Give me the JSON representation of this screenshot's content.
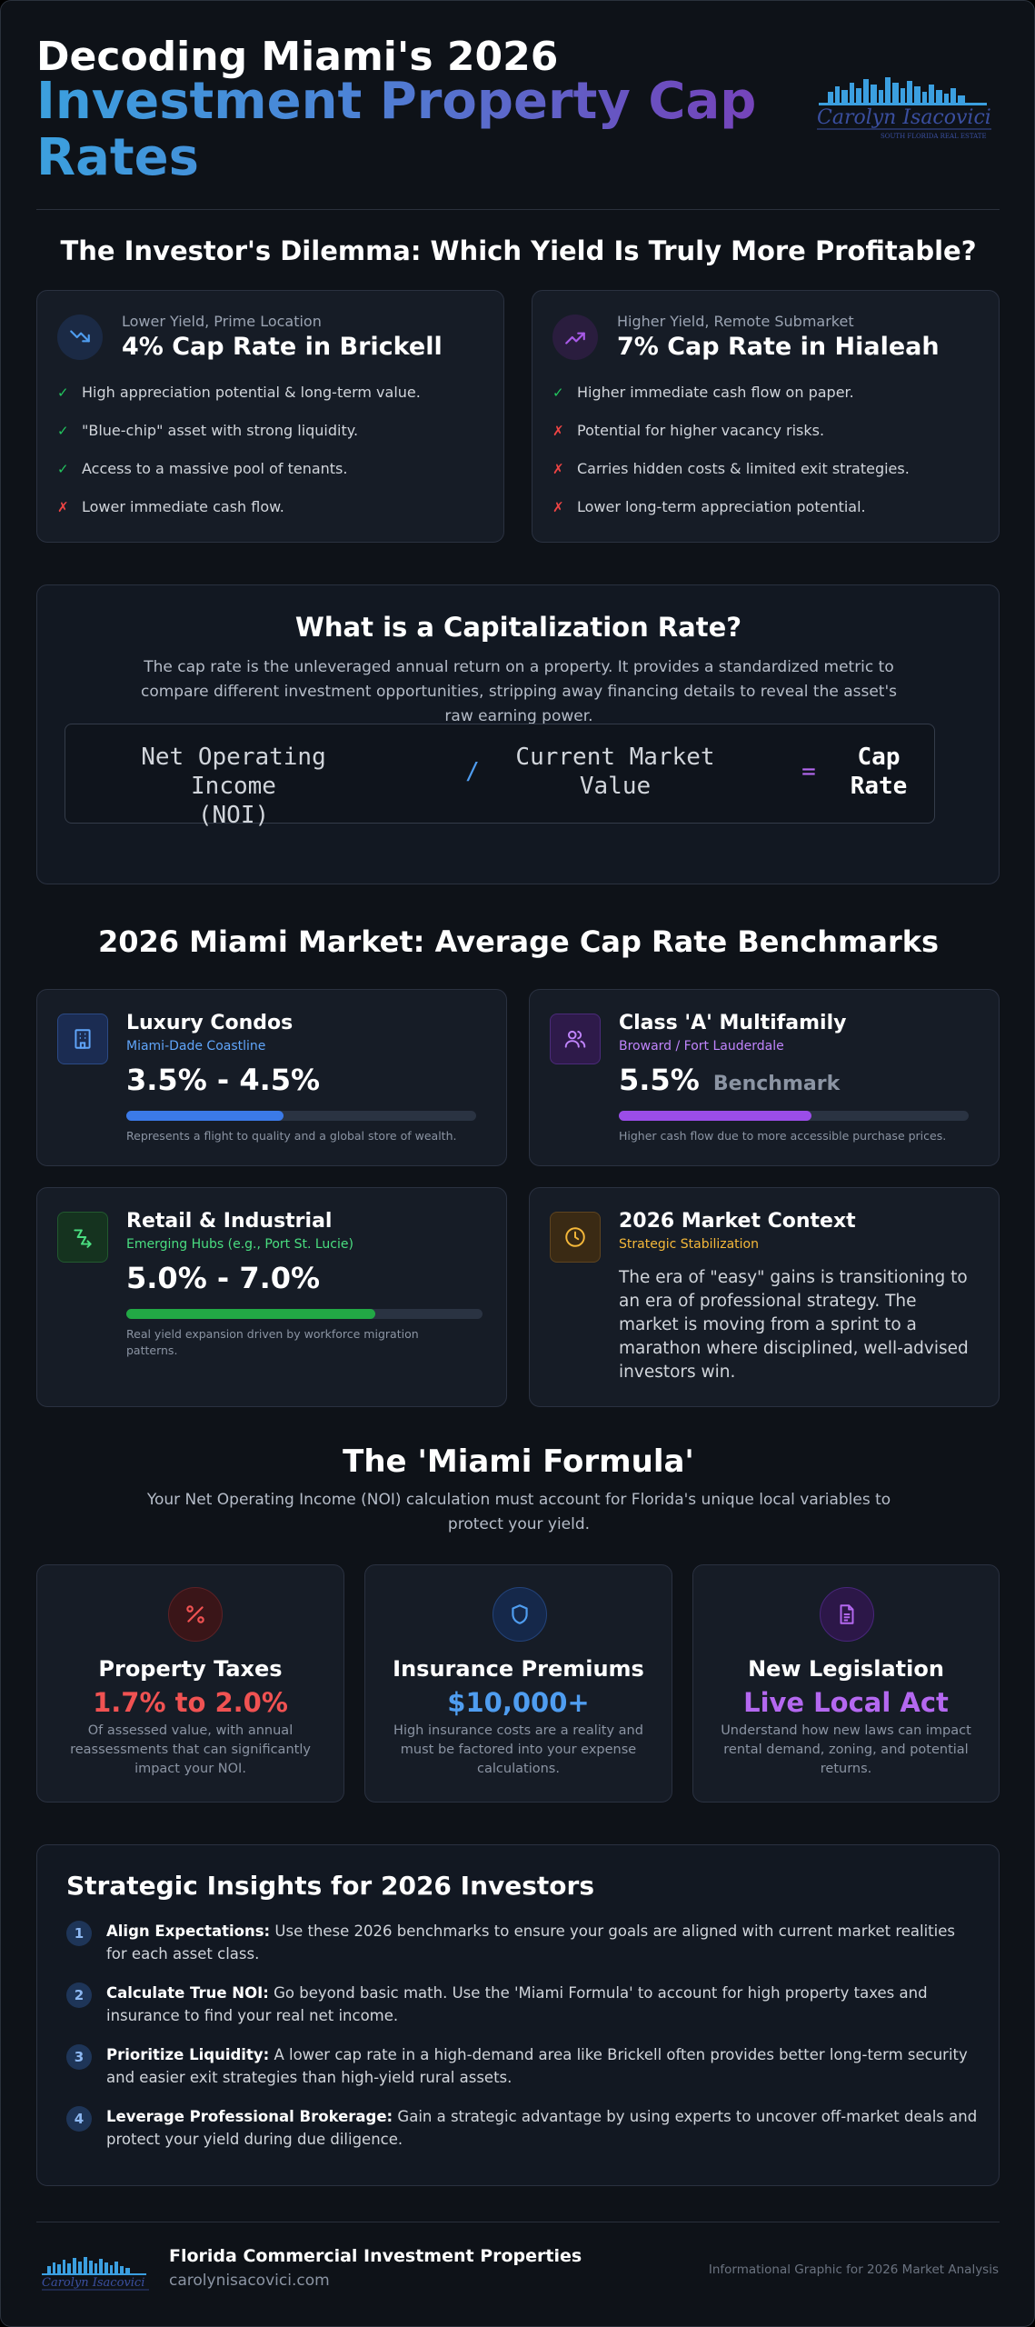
{
  "header": {
    "title_line1": "Decoding Miami's 2026",
    "title_line2": "Investment Property Cap Rates",
    "logo_script": "Carolyn Isacovici",
    "logo_tagline": "SOUTH FLORIDA REAL ESTATE"
  },
  "dilemma": {
    "title": "The Investor's Dilemma: Which Yield Is Truly More Profitable?",
    "left": {
      "kicker": "Lower Yield, Prime Location",
      "heading": "4% Cap Rate in Brickell",
      "icon": "trending-down-icon",
      "items": [
        {
          "mark": "✓",
          "type": "pro",
          "text": "High appreciation potential & long-term value."
        },
        {
          "mark": "✓",
          "type": "pro",
          "text": "\"Blue-chip\" asset with strong liquidity."
        },
        {
          "mark": "✓",
          "type": "pro",
          "text": "Access to a massive pool of tenants."
        },
        {
          "mark": "✗",
          "type": "con",
          "text": "Lower immediate cash flow."
        }
      ]
    },
    "right": {
      "kicker": "Higher Yield, Remote Submarket",
      "heading": "7% Cap Rate in Hialeah",
      "icon": "trending-up-icon",
      "items": [
        {
          "mark": "✓",
          "type": "pro",
          "text": "Higher immediate cash flow on paper."
        },
        {
          "mark": "✗",
          "type": "con",
          "text": "Potential for higher vacancy risks."
        },
        {
          "mark": "✗",
          "type": "con",
          "text": "Carries hidden costs & limited exit strategies."
        },
        {
          "mark": "✗",
          "type": "con",
          "text": "Lower long-term appreciation potential."
        }
      ]
    }
  },
  "cap_rate": {
    "title": "What is a Capitalization Rate?",
    "description": "The cap rate is the unleveraged annual return on a property. It provides a standardized metric to compare different investment opportunities, stripping away financing details to reveal the asset's raw earning power.",
    "formula": {
      "numerator_line1": "Net Operating Income",
      "numerator_line2": "(NOI)",
      "divide": "/",
      "denominator_line1": "Current Market",
      "denominator_line2": "Value",
      "equals": "=",
      "result_line1": "Cap",
      "result_line2": "Rate"
    }
  },
  "benchmarks": {
    "title": "2026 Miami Market: Average Cap Rate Benchmarks",
    "cards": [
      {
        "title": "Luxury Condos",
        "subtitle": "Miami-Dade Coastline",
        "value": "3.5% - 4.5%",
        "note": "Represents a flight to quality and a global store of wealth.",
        "bar_fraction": 0.45,
        "bar_color": "#3b7ae8",
        "icon": "building-icon",
        "accent": "#60a5fa"
      },
      {
        "title": "Class 'A' Multifamily",
        "subtitle": "Broward / Fort Lauderdale",
        "value": "5.5%",
        "value_suffix": "Benchmark",
        "note": "Higher cash flow due to more accessible purchase prices.",
        "bar_fraction": 0.55,
        "bar_color": "#9b4de8",
        "icon": "users-icon",
        "accent": "#c084fc"
      },
      {
        "title": "Retail & Industrial",
        "subtitle": "Emerging Hubs (e.g., Port St. Lucie)",
        "value": "5.0% - 7.0%",
        "note": "Real yield expansion driven by workforce migration patterns.",
        "bar_fraction": 0.7,
        "bar_color": "#22a845",
        "icon": "route-icon",
        "accent": "#4ade80"
      },
      {
        "title": "2026 Market Context",
        "subtitle": "Strategic Stabilization",
        "body": "The era of \"easy\" gains is transitioning to an era of professional strategy. The market is moving from a sprint to a marathon where disciplined, well-advised investors win.",
        "icon": "clock-icon",
        "accent": "#f5b83a"
      }
    ]
  },
  "miami_formula": {
    "title": "The 'Miami Formula'",
    "subtitle": "Your Net Operating Income (NOI) calculation must account for Florida's unique local variables to protect your yield.",
    "cards": [
      {
        "title": "Property Taxes",
        "value": "1.7% to 2.0%",
        "note": "Of assessed value, with annual reassessments that can significantly impact your NOI.",
        "icon": "percent-icon",
        "color": "#f05252"
      },
      {
        "title": "Insurance Premiums",
        "value": "$10,000+",
        "note": "High insurance costs are a reality and must be factored into your expense calculations.",
        "icon": "shield-icon",
        "color": "#4f9df0"
      },
      {
        "title": "New Legislation",
        "value": "Live Local Act",
        "note": "Understand how new laws can impact rental demand, zoning, and potential returns.",
        "icon": "document-icon",
        "color": "#b468f0"
      }
    ]
  },
  "insights": {
    "title": "Strategic Insights for 2026 Investors",
    "items": [
      {
        "num": "1",
        "label": "Align Expectations:",
        "text": " Use these 2026 benchmarks to ensure your goals are aligned with current market realities for each asset class."
      },
      {
        "num": "2",
        "label": "Calculate True NOI:",
        "text": " Go beyond basic math. Use the 'Miami Formula' to account for high property taxes and insurance to find your real net income."
      },
      {
        "num": "3",
        "label": "Prioritize Liquidity:",
        "text": " A lower cap rate in a high-demand area like Brickell often provides better long-term security and easier exit strategies than high-yield rural assets."
      },
      {
        "num": "4",
        "label": "Leverage Professional Brokerage:",
        "text": " Gain a strategic advantage by using experts to uncover off-market deals and protect your yield during due diligence."
      }
    ]
  },
  "footer": {
    "brand": "Florida Commercial Investment Properties",
    "website": "carolynisacovici.com",
    "note": "Informational Graphic for 2026 Market Analysis"
  },
  "colors": {
    "background": "#0e1218",
    "card": "#161c26",
    "pro": "#22c55e",
    "con": "#ef4444"
  }
}
